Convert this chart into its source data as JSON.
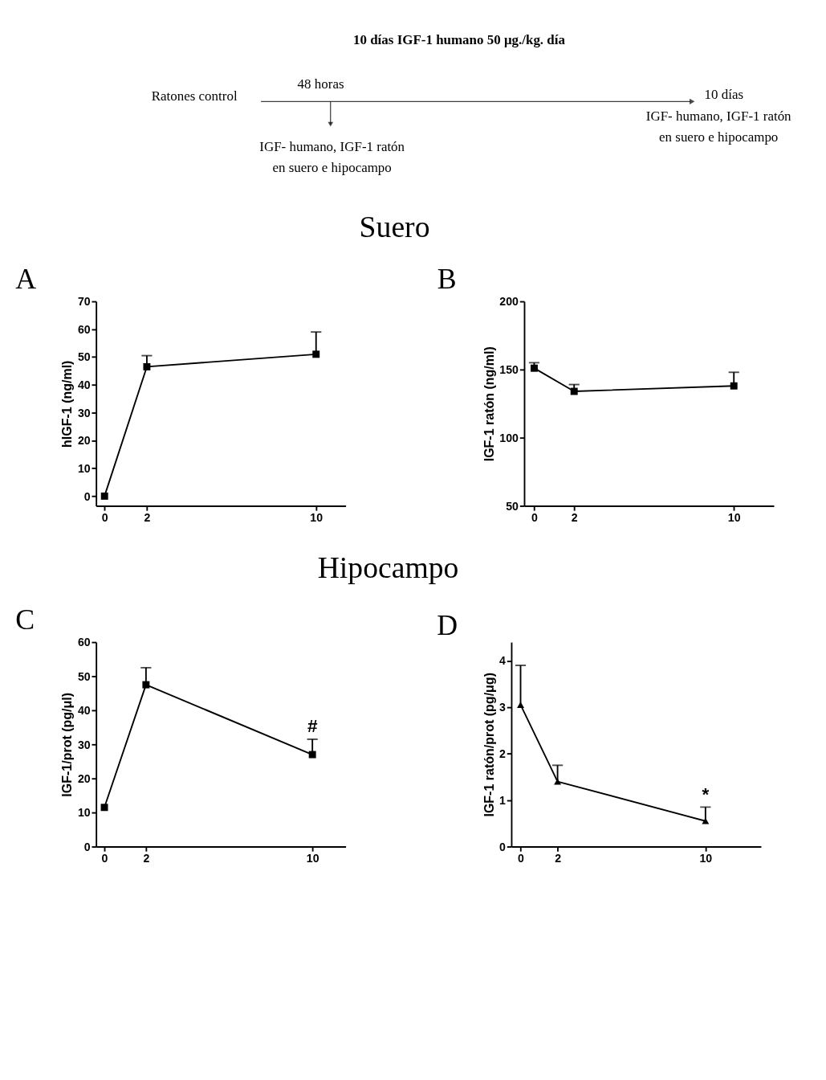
{
  "chart_data": [
    {
      "type": "other",
      "title": "10 días IGF-1 humano  50 μg./kg. día",
      "annotations": [
        "Ratones control",
        "48 horas",
        "IGF- humano, IGF-1 ratón",
        "en suero e hipocampo",
        "10 días",
        "IGF- humano, IGF-1 ratón",
        "en suero e hipocampo",
        "Suero",
        "Hipocampo"
      ]
    },
    {
      "type": "line",
      "title": "A",
      "ylabel": "hIGF-1 (ng/ml)",
      "x": [
        0,
        2,
        10
      ],
      "xlim": [
        -0.4,
        11.4
      ],
      "xticks": [
        0,
        2,
        10
      ],
      "ylim": [
        -3.5,
        70
      ],
      "yticks": [
        0,
        10,
        20,
        30,
        40,
        50,
        60,
        70
      ],
      "marker": "square",
      "grid": false,
      "series": [
        {
          "color": "#000000",
          "values": [
            0,
            46.5,
            51
          ],
          "errors": [
            null,
            [
              46.5,
              50.5
            ],
            [
              51,
              59
            ]
          ]
        }
      ]
    },
    {
      "type": "line",
      "title": "B",
      "ylabel": "IGF-1 ratón (ng/ml)",
      "x": [
        0,
        2,
        10
      ],
      "xlim": [
        -0.5,
        12
      ],
      "xticks": [
        0,
        2,
        10
      ],
      "ylim": [
        50,
        200
      ],
      "yticks": [
        50,
        100,
        150,
        200
      ],
      "marker": "square",
      "grid": false,
      "series": [
        {
          "color": "#000000",
          "values": [
            151,
            134,
            138
          ],
          "errors": [
            [
              151,
              155
            ],
            [
              134,
              139
            ],
            [
              138,
              148
            ]
          ]
        }
      ]
    },
    {
      "type": "line",
      "title": "C",
      "ylabel": "IGF-1/prot (pg/μl)",
      "x": [
        0,
        2,
        10
      ],
      "xlim": [
        -0.4,
        11.6
      ],
      "xticks": [
        0,
        2,
        10
      ],
      "ylim": [
        0,
        60
      ],
      "yticks": [
        0,
        10,
        20,
        30,
        40,
        50,
        60
      ],
      "marker": "square",
      "grid": false,
      "annotations": [
        "#"
      ],
      "series": [
        {
          "color": "#000000",
          "values": [
            11.5,
            47.5,
            27
          ],
          "errors": [
            null,
            [
              47.5,
              52.5
            ],
            [
              27,
              31.5
            ]
          ]
        }
      ]
    },
    {
      "type": "line",
      "title": "D",
      "ylabel": "IGF-1 ratón/prot (pg/μg)",
      "x": [
        0,
        2,
        10
      ],
      "xlim": [
        -0.5,
        13
      ],
      "xticks": [
        0,
        2,
        10
      ],
      "ylim": [
        0,
        4.4
      ],
      "yticks": [
        0,
        1,
        2,
        3,
        4
      ],
      "marker": "triangle",
      "grid": false,
      "annotations": [
        "*"
      ],
      "series": [
        {
          "color": "#000000",
          "values": [
            3.05,
            1.4,
            0.55
          ],
          "errors": [
            [
              3.05,
              3.9
            ],
            [
              1.4,
              1.75
            ],
            [
              0.55,
              0.85
            ]
          ]
        }
      ]
    }
  ]
}
